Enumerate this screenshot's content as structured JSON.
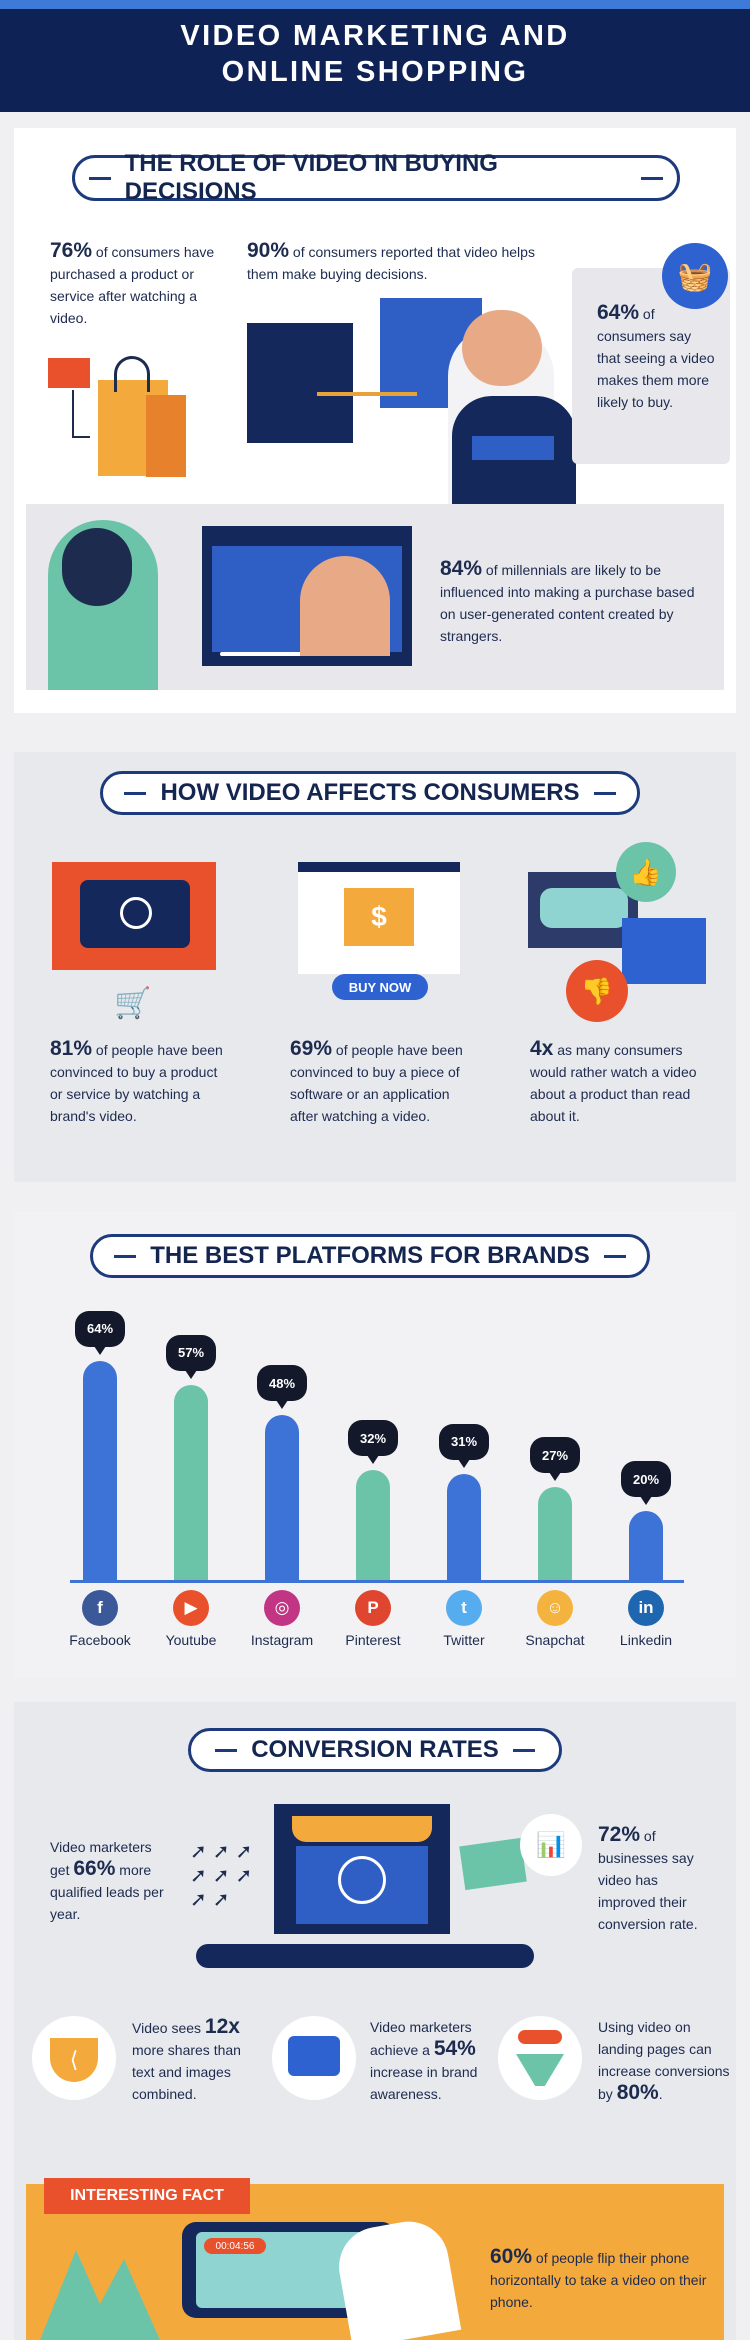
{
  "header": {
    "title_line1": "VIDEO MARKETING AND",
    "title_line2": "ONLINE SHOPPING"
  },
  "role": {
    "title": "THE ROLE OF VIDEO IN BUYING DECISIONS",
    "stat76": {
      "value": "76%",
      "text": "of consumers have purchased a product or service after watching a video."
    },
    "stat90": {
      "value": "90%",
      "text": "of consumers reported that video helps them make buying decisions."
    },
    "stat64": {
      "value": "64%",
      "text": "of consumers say that seeing a video makes them more likely to buy."
    },
    "stat84": {
      "value": "84%",
      "text": "of millennials are likely to be influenced into making a purchase based on user-generated content created by strangers."
    }
  },
  "affects": {
    "title": "HOW VIDEO AFFECTS CONSUMERS",
    "stat81": {
      "value": "81%",
      "text": "of people have been convinced to buy a product or service by watching a brand's video."
    },
    "stat69": {
      "value": "69%",
      "text": "of people have been convinced to buy a piece of software or an application after watching a video."
    },
    "stat4x": {
      "value": "4x",
      "text": "as many consumers would rather watch a video about a product than read about it."
    },
    "buy_now": "BUY NOW"
  },
  "chart_data": {
    "type": "bar",
    "title": "THE BEST PLATFORMS FOR BRANDS",
    "categories": [
      "Facebook",
      "Youtube",
      "Instagram",
      "Pinterest",
      "Twitter",
      "Snapchat",
      "Linkedin"
    ],
    "values": [
      64,
      57,
      48,
      32,
      31,
      27,
      20
    ],
    "data_labels": [
      "64%",
      "57%",
      "48%",
      "32%",
      "31%",
      "27%",
      "20%"
    ],
    "colors": [
      "#3d73d6",
      "#6cc4a8",
      "#3d73d6",
      "#6cc4a8",
      "#3d73d6",
      "#6cc4a8",
      "#3d73d6"
    ],
    "icon_colors": [
      "#3b5998",
      "#e8512c",
      "#c13584",
      "#e0452f",
      "#55acee",
      "#f4b33e",
      "#1f66b0"
    ],
    "icon_glyphs": [
      "f",
      "▶",
      "◎",
      "P",
      "t",
      "☺",
      "in"
    ],
    "ylim": [
      0,
      70
    ],
    "grid": false
  },
  "conversion": {
    "title": "CONVERSION RATES",
    "marketers": {
      "pre": "Video marketers get",
      "value": "66%",
      "post": "more qualified leads per year."
    },
    "stat72": {
      "value": "72%",
      "text": "of businesses say video has improved their conversion rate."
    },
    "shares": {
      "pre": "Video sees",
      "value": "12x",
      "post": "more shares than text and images combined."
    },
    "brand": {
      "pre": "Video marketers achieve a",
      "value": "54%",
      "post": "increase in brand awareness."
    },
    "landing": {
      "pre": "Using video on landing pages can increase conversions by",
      "value": "80%",
      "post": "."
    }
  },
  "fact": {
    "tag": "INTERESTING FACT",
    "timestamp": "00:04:56",
    "value": "60%",
    "text": "of people flip their phone horizontally to take a video on their phone."
  }
}
